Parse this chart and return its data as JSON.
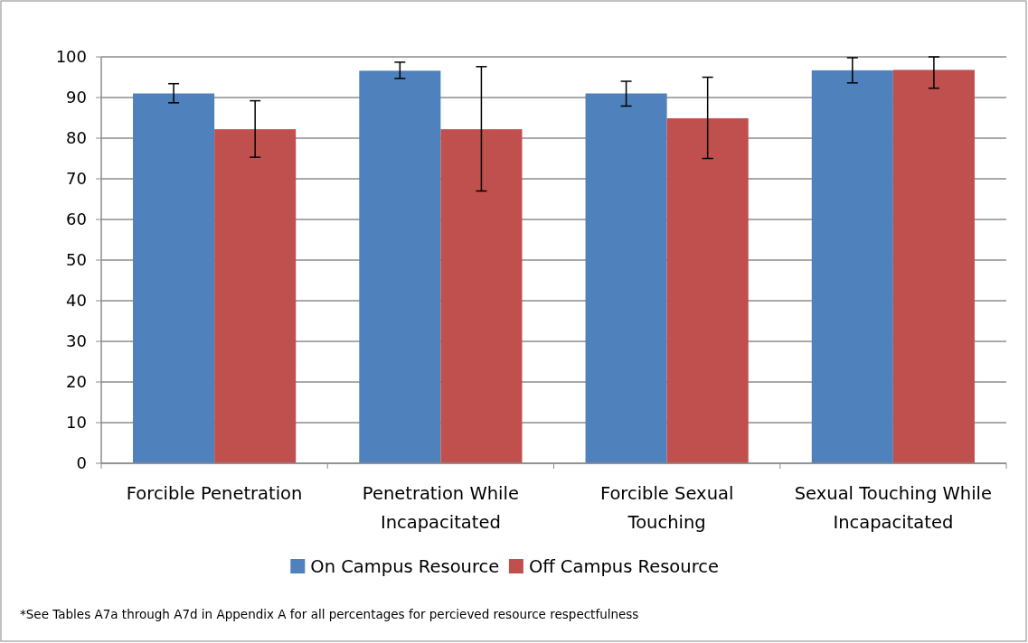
{
  "chart_data": {
    "type": "bar",
    "categories": [
      "Forcible Penetration",
      "Penetration While Incapacitated",
      "Forcible Sexual Touching",
      "Sexual Touching While Incapacitated"
    ],
    "series": [
      {
        "name": "On Campus Resource",
        "color": "#4f81bd",
        "values": [
          91.0,
          96.6,
          91.0,
          96.7
        ],
        "errors": [
          [
            88.7,
            93.4
          ],
          [
            94.7,
            98.7
          ],
          [
            87.9,
            94.0
          ],
          [
            93.6,
            99.8
          ]
        ]
      },
      {
        "name": "Off Campus Resource",
        "color": "#c0504d",
        "values": [
          82.2,
          82.2,
          84.9,
          96.8
        ],
        "errors": [
          [
            75.3,
            89.2
          ],
          [
            67.0,
            97.6
          ],
          [
            75.0,
            95.0
          ],
          [
            92.3,
            100
          ]
        ]
      }
    ],
    "ylim": [
      0,
      100
    ],
    "yticks": [
      0,
      10,
      20,
      30,
      40,
      50,
      60,
      70,
      80,
      90,
      100
    ],
    "grid": "y",
    "legend": "bottom",
    "annotations": [
      "*See Tables A7a through A7d in Appendix A for all percentages for percieved resource respectfulness"
    ]
  }
}
